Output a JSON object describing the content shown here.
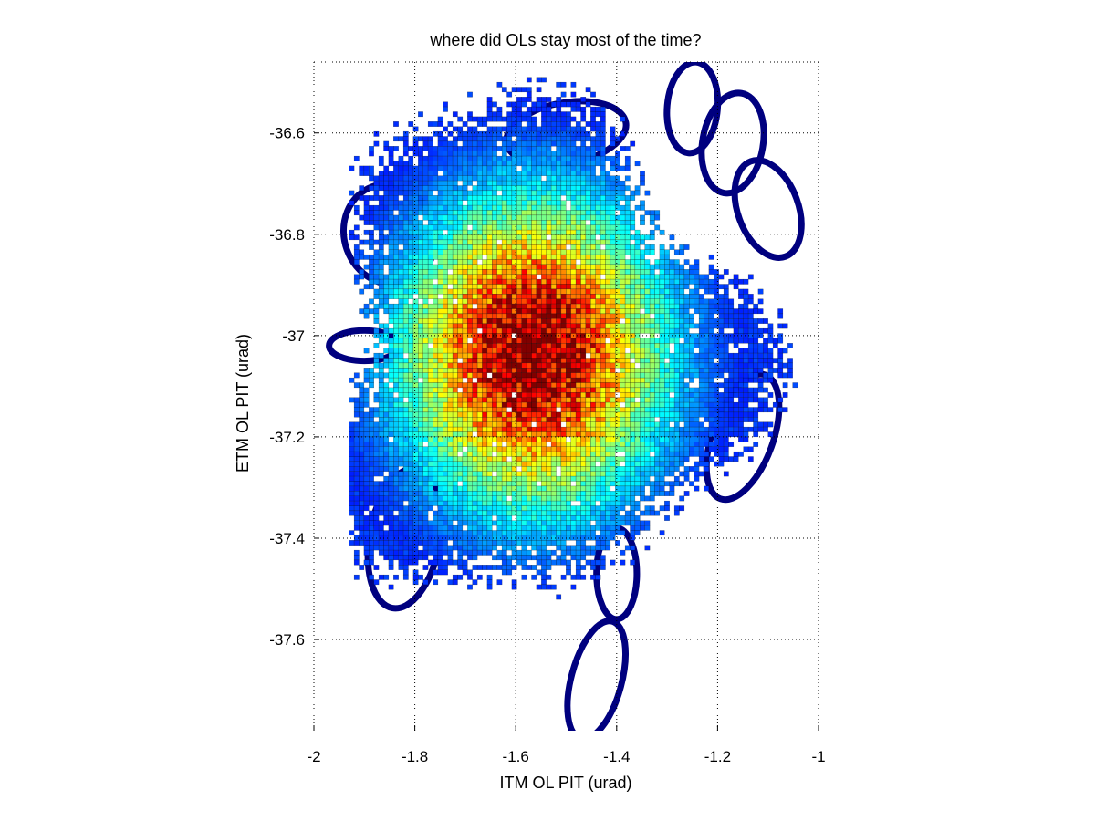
{
  "chart_data": {
    "type": "heatmap",
    "title": "where did OLs stay most of the time?",
    "xlabel": "ITM OL PIT (urad)",
    "ylabel": "ETM OL PIT (urad)",
    "xlim": [
      -2,
      -1
    ],
    "ylim": [
      -37.78,
      -36.46
    ],
    "xticks": [
      -2,
      -1.8,
      -1.6,
      -1.4,
      -1.2,
      -1
    ],
    "xtick_labels": [
      "-2",
      "-1.8",
      "-1.6",
      "-1.4",
      "-1.2",
      "-1"
    ],
    "yticks": [
      -37.6,
      -37.4,
      -37.2,
      -37,
      -36.8,
      -36.6
    ],
    "ytick_labels": [
      "-37.6",
      "-37.4",
      "-37.2",
      "-37",
      "-36.8",
      "-36.6"
    ],
    "grid": true,
    "colormap": "jet",
    "density_peak": {
      "x": -1.57,
      "y": -37.03
    },
    "density_spread": {
      "sx": 0.17,
      "sy": 0.2
    },
    "support_region": {
      "x_range": [
        -1.93,
        -1.04
      ],
      "y_range": [
        -37.7,
        -36.49
      ]
    },
    "loops": [
      {
        "cx": -1.85,
        "cy": -36.8,
        "rx": 0.09,
        "ry": 0.1,
        "angle": -20
      },
      {
        "cx": -1.9,
        "cy": -37.02,
        "rx": 0.07,
        "ry": 0.03,
        "angle": 0
      },
      {
        "cx": -1.82,
        "cy": -37.4,
        "rx": 0.07,
        "ry": 0.14,
        "angle": 10
      },
      {
        "cx": -1.44,
        "cy": -37.68,
        "rx": 0.05,
        "ry": 0.12,
        "angle": 15
      },
      {
        "cx": -1.17,
        "cy": -36.62,
        "rx": 0.06,
        "ry": 0.1,
        "angle": 10
      },
      {
        "cx": -1.1,
        "cy": -36.75,
        "rx": 0.06,
        "ry": 0.1,
        "angle": -20
      },
      {
        "cx": -1.15,
        "cy": -37.2,
        "rx": 0.06,
        "ry": 0.13,
        "angle": 20
      },
      {
        "cx": -1.4,
        "cy": -37.47,
        "rx": 0.04,
        "ry": 0.09,
        "angle": 0
      },
      {
        "cx": -1.25,
        "cy": -36.55,
        "rx": 0.05,
        "ry": 0.09,
        "angle": 5
      },
      {
        "cx": -1.5,
        "cy": -36.6,
        "rx": 0.12,
        "ry": 0.06,
        "angle": -10
      }
    ]
  },
  "colors": {
    "outline": "#000000",
    "grid": "#000000",
    "loop": "#00007f"
  }
}
